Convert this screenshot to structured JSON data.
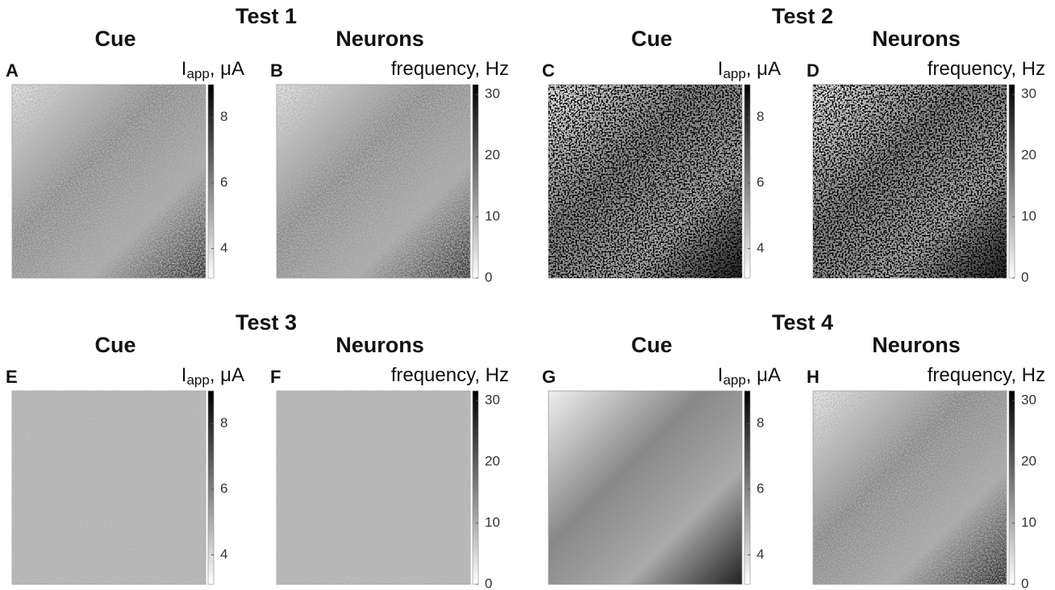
{
  "figure": {
    "tests": [
      {
        "title": "Test 1",
        "panels": [
          {
            "letter": "A",
            "title": "Cue",
            "colorbar": {
              "label": "I",
              "label_sub": "app",
              "label_unit": ", μA",
              "lim": [
                3.1,
                9
              ],
              "ticks": [
                4,
                6,
                8
              ]
            }
          },
          {
            "letter": "B",
            "title": "Neurons",
            "colorbar": {
              "label": "frequency, Hz",
              "lim": [
                0,
                31.6
              ],
              "ticks": [
                0,
                10,
                20,
                30
              ]
            }
          }
        ]
      },
      {
        "title": "Test 2",
        "panels": [
          {
            "letter": "C",
            "title": "Cue",
            "colorbar": {
              "label": "I",
              "label_sub": "app",
              "label_unit": ", μA",
              "lim": [
                3.1,
                9
              ],
              "ticks": [
                4,
                6,
                8
              ]
            }
          },
          {
            "letter": "D",
            "title": "Neurons",
            "colorbar": {
              "label": "frequency, Hz",
              "lim": [
                0,
                31.6
              ],
              "ticks": [
                0,
                10,
                20,
                30
              ]
            }
          }
        ]
      },
      {
        "title": "Test 3",
        "panels": [
          {
            "letter": "E",
            "title": "Cue",
            "colorbar": {
              "label": "I",
              "label_sub": "app",
              "label_unit": ", μA",
              "lim": [
                3.1,
                9
              ],
              "ticks": [
                4,
                6,
                8
              ]
            }
          },
          {
            "letter": "F",
            "title": "Neurons",
            "colorbar": {
              "label": "frequency, Hz",
              "lim": [
                0,
                31.6
              ],
              "ticks": [
                0,
                10,
                20,
                30
              ]
            }
          }
        ]
      },
      {
        "title": "Test 4",
        "panels": [
          {
            "letter": "G",
            "title": "Cue",
            "colorbar": {
              "label": "I",
              "label_sub": "app",
              "label_unit": ", μA",
              "lim": [
                3.1,
                9
              ],
              "ticks": [
                4,
                6,
                8
              ]
            }
          },
          {
            "letter": "H",
            "title": "Neurons",
            "colorbar": {
              "label": "frequency, Hz",
              "lim": [
                0,
                31.6
              ],
              "ticks": [
                0,
                10,
                20,
                30
              ]
            }
          }
        ]
      }
    ]
  }
}
